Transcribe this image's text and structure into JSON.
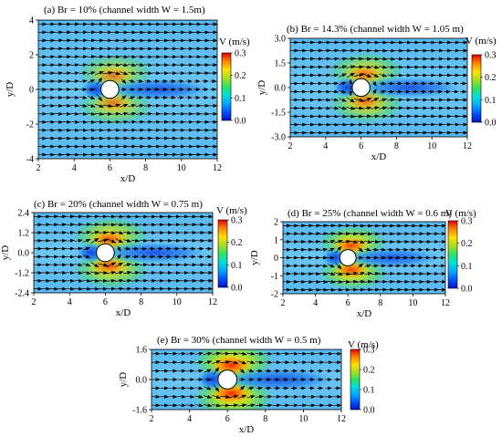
{
  "chart_data": [
    {
      "type": "heatmap",
      "title": "(a) Br = 10% (channel width W = 1.5m)",
      "xlabel": "x/D",
      "ylabel": "y/D",
      "x_ticks": [
        2,
        4,
        6,
        8,
        10,
        12
      ],
      "y_ticks": [
        -4,
        -2,
        0,
        2,
        4
      ],
      "xlim": [
        2,
        12
      ],
      "ylim": [
        -4,
        4
      ],
      "cylinder": {
        "x": 6,
        "y": 0,
        "diameter": 1
      },
      "colorbar": {
        "label": "V (m/s)",
        "ticks": [
          0.0,
          0.1,
          0.2,
          0.3
        ],
        "range": [
          0,
          0.3
        ]
      }
    },
    {
      "type": "heatmap",
      "title": "(b) Br = 14.3% (channel width W = 1.05 m)",
      "xlabel": "x/D",
      "ylabel": "y/D",
      "x_ticks": [
        2,
        4,
        6,
        8,
        10,
        12
      ],
      "y_ticks": [
        -3.0,
        -1.5,
        0.0,
        1.5,
        3.0
      ],
      "xlim": [
        2,
        12
      ],
      "ylim": [
        -3,
        3
      ],
      "cylinder": {
        "x": 6,
        "y": 0,
        "diameter": 1
      },
      "colorbar": {
        "label": "V (m/s)",
        "ticks": [
          0.0,
          0.1,
          0.2,
          0.3
        ],
        "range": [
          0,
          0.3
        ]
      }
    },
    {
      "type": "heatmap",
      "title": "(c) Br = 20% (channel width W = 0.75 m)",
      "xlabel": "x/D",
      "ylabel": "y/D",
      "x_ticks": [
        2,
        4,
        6,
        8,
        10,
        12
      ],
      "y_ticks": [
        -2.4,
        -1.2,
        0.0,
        1.2,
        2.4
      ],
      "xlim": [
        2,
        12
      ],
      "ylim": [
        -2.4,
        2.4
      ],
      "cylinder": {
        "x": 6,
        "y": 0,
        "diameter": 1
      },
      "colorbar": {
        "label": "V (m/s)",
        "ticks": [
          0.0,
          0.1,
          0.2,
          0.3
        ],
        "range": [
          0,
          0.3
        ]
      }
    },
    {
      "type": "heatmap",
      "title": "(d) Br = 25% (channel width W = 0.6 m)",
      "xlabel": "x/D",
      "ylabel": "y/D",
      "x_ticks": [
        2,
        4,
        6,
        8,
        10,
        12
      ],
      "y_ticks": [
        -2,
        -1,
        0,
        1,
        2
      ],
      "xlim": [
        2,
        12
      ],
      "ylim": [
        -2,
        2
      ],
      "cylinder": {
        "x": 6,
        "y": 0,
        "diameter": 1
      },
      "colorbar": {
        "label": "V (m/s)",
        "ticks": [
          0.0,
          0.1,
          0.2,
          0.3
        ],
        "range": [
          0,
          0.3
        ]
      }
    },
    {
      "type": "heatmap",
      "title": "(e) Br = 30% (channel width W = 0.5 m)",
      "xlabel": "x/D",
      "ylabel": "y/D",
      "x_ticks": [
        2,
        4,
        6,
        8,
        10,
        12
      ],
      "y_ticks": [
        -1.6,
        0.0,
        1.6
      ],
      "xlim": [
        2,
        12
      ],
      "ylim": [
        -1.6,
        1.6
      ],
      "cylinder": {
        "x": 6,
        "y": 0,
        "diameter": 1
      },
      "colorbar": {
        "label": "V (m/s)",
        "ticks": [
          0.0,
          0.1,
          0.2,
          0.3
        ],
        "range": [
          0,
          0.3
        ]
      }
    }
  ]
}
